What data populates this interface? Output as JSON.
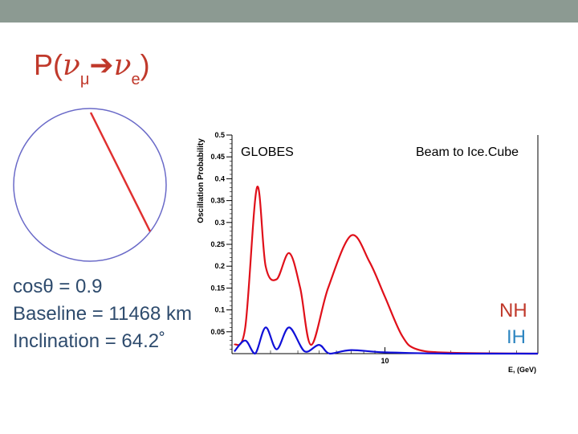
{
  "slide": {
    "title": {
      "prefix": "P(",
      "nu": "ν",
      "sub1": "μ",
      "arrow": "➔",
      "sub2": "e",
      "suffix": ")"
    },
    "info": {
      "cos": "cosθ = 0.9",
      "baseline": "Baseline = 11468 km",
      "inclination": "Inclination = 64.2˚"
    },
    "legend": {
      "nh": "NH",
      "ih": "IH"
    },
    "colors": {
      "header": "#8c9a92",
      "title": "#c0392b",
      "info_text": "#2e4b6d",
      "circle": "#6a6ac8",
      "chord": "#e03030",
      "nh": "#c0392b",
      "ih": "#2e86c1"
    }
  },
  "chart_data": {
    "type": "line",
    "ylabel": "Oscillation Probability",
    "xlabel": "E, (GeV)",
    "annotations": [
      "GLOBES",
      "Beam to Ice.Cube"
    ],
    "xscale": "log",
    "xlim": [
      2,
      50
    ],
    "ylim": [
      0,
      0.5
    ],
    "yticks": [
      0.05,
      0.1,
      0.15,
      0.2,
      0.25,
      0.3,
      0.35,
      0.4,
      0.45,
      0.5
    ],
    "ytick_labels": [
      "0.05",
      "0.1",
      "0.15",
      "0.2",
      "0.25",
      "0.3",
      "0.35",
      "0.4",
      "0.45",
      "0.5"
    ],
    "xticks": [
      10
    ],
    "xtick_labels": [
      "10"
    ],
    "series": [
      {
        "name": "NH",
        "color": "#e0101a",
        "points": [
          [
            2.05,
            0.02
          ],
          [
            2.3,
            0.06
          ],
          [
            2.6,
            0.38
          ],
          [
            2.85,
            0.2
          ],
          [
            3.2,
            0.17
          ],
          [
            3.65,
            0.23
          ],
          [
            4.1,
            0.15
          ],
          [
            4.6,
            0.02
          ],
          [
            5.5,
            0.15
          ],
          [
            7.0,
            0.27
          ],
          [
            8.5,
            0.21
          ],
          [
            10.0,
            0.13
          ],
          [
            12.0,
            0.04
          ],
          [
            14.0,
            0.01
          ],
          [
            20.0,
            0.002
          ],
          [
            50.0,
            0.0
          ]
        ]
      },
      {
        "name": "IH",
        "color": "#1010d8",
        "points": [
          [
            2.05,
            0.005
          ],
          [
            2.3,
            0.03
          ],
          [
            2.55,
            0.0
          ],
          [
            2.85,
            0.06
          ],
          [
            3.2,
            0.01
          ],
          [
            3.65,
            0.06
          ],
          [
            4.3,
            0.005
          ],
          [
            5.0,
            0.02
          ],
          [
            5.6,
            0.0
          ],
          [
            7.0,
            0.008
          ],
          [
            10.0,
            0.003
          ],
          [
            20.0,
            0.0
          ],
          [
            50.0,
            0.0
          ]
        ]
      }
    ]
  }
}
